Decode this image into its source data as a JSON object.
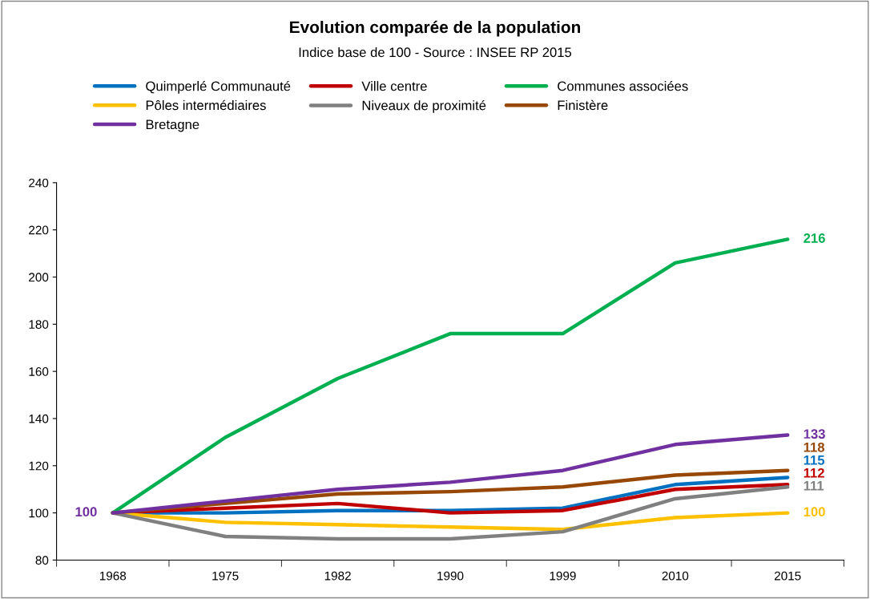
{
  "chart_data": {
    "type": "line",
    "title": "Evolution comparée de la population",
    "subtitle": "Indice base de 100 - Source : INSEE RP 2015",
    "categories": [
      "1968",
      "1975",
      "1982",
      "1990",
      "1999",
      "2010",
      "2015"
    ],
    "series": [
      {
        "name": "Quimperlé Communauté",
        "color": "#0070c0",
        "values": [
          100,
          100,
          101,
          101,
          102,
          112,
          115
        ],
        "value_labels": [
          null,
          null,
          null,
          null,
          null,
          null,
          "115"
        ]
      },
      {
        "name": "Ville centre",
        "color": "#c00000",
        "values": [
          100,
          102,
          104,
          100,
          101,
          110,
          112
        ],
        "value_labels": [
          null,
          null,
          null,
          null,
          null,
          null,
          "112"
        ]
      },
      {
        "name": "Communes associées",
        "color": "#00b050",
        "values": [
          100,
          132,
          157,
          176,
          176,
          206,
          216
        ],
        "value_labels": [
          null,
          null,
          null,
          null,
          null,
          null,
          "216"
        ]
      },
      {
        "name": "Pôles intermédiaires",
        "color": "#ffc000",
        "values": [
          100,
          96,
          95,
          94,
          93,
          98,
          100
        ],
        "value_labels": [
          null,
          null,
          null,
          null,
          null,
          null,
          "100"
        ]
      },
      {
        "name": "Niveaux de proximité",
        "color": "#808080",
        "values": [
          100,
          90,
          89,
          89,
          92,
          106,
          111
        ],
        "value_labels": [
          null,
          null,
          null,
          null,
          null,
          null,
          "111"
        ]
      },
      {
        "name": "Finistère",
        "color": "#974706",
        "values": [
          100,
          104,
          108,
          109,
          111,
          116,
          118
        ],
        "value_labels": [
          null,
          null,
          null,
          null,
          null,
          null,
          "118"
        ]
      },
      {
        "name": "Bretagne",
        "color": "#7030a0",
        "values": [
          100,
          105,
          110,
          113,
          118,
          129,
          133
        ],
        "value_labels": [
          "100",
          null,
          null,
          null,
          null,
          null,
          "133"
        ]
      }
    ],
    "ylim": [
      80,
      240
    ],
    "yticks": [
      80,
      100,
      120,
      140,
      160,
      180,
      200,
      220,
      240
    ],
    "grid": false,
    "legend": "top",
    "line_style": "solid",
    "marker": "none"
  }
}
